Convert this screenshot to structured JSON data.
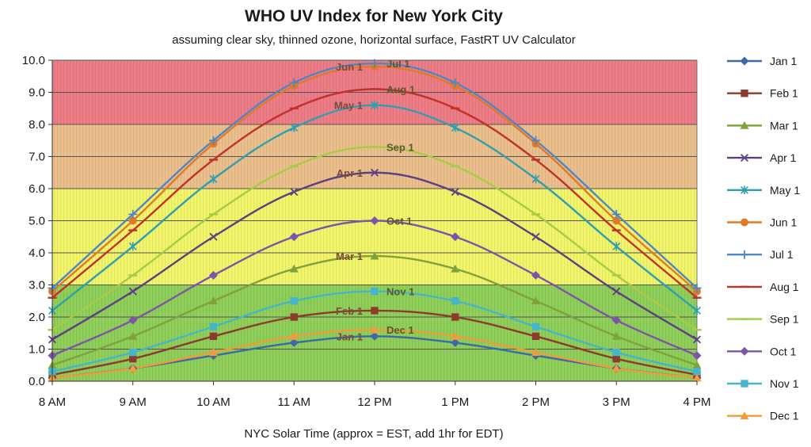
{
  "chart_data": {
    "type": "line",
    "title": "WHO UV Index for New York City",
    "subtitle": "assuming clear sky, thinned ozone, horizontal surface, FastRT UV Calculator",
    "xlabel": "NYC Solar Time (approx = EST, add 1hr for EDT)",
    "ylabel": "",
    "ylim": [
      0,
      10
    ],
    "yticks": [
      "0.0",
      "1.0",
      "2.0",
      "3.0",
      "4.0",
      "5.0",
      "6.0",
      "7.0",
      "8.0",
      "9.0",
      "10.0"
    ],
    "categories": [
      "8 AM",
      "9 AM",
      "10 AM",
      "11 AM",
      "12 PM",
      "1 PM",
      "2 PM",
      "3 PM",
      "4 PM"
    ],
    "grid": true,
    "legend_position": "right",
    "bands": [
      {
        "from": 0,
        "to": 3,
        "color": "#8fcf5a"
      },
      {
        "from": 3,
        "to": 6,
        "color": "#f3f56a"
      },
      {
        "from": 6,
        "to": 8,
        "color": "#ecc08c"
      },
      {
        "from": 8,
        "to": 10,
        "color": "#ee7d87"
      }
    ],
    "series": [
      {
        "name": "Jan 1",
        "color": "#3c69a8",
        "marker": "diamond",
        "values": [
          0.1,
          0.4,
          0.8,
          1.2,
          1.4,
          1.2,
          0.8,
          0.4,
          0.1
        ]
      },
      {
        "name": "Feb 1",
        "color": "#8c3b2c",
        "marker": "square",
        "values": [
          0.2,
          0.7,
          1.4,
          2.0,
          2.2,
          2.0,
          1.4,
          0.7,
          0.2
        ]
      },
      {
        "name": "Mar 1",
        "color": "#7fa23a",
        "marker": "triangle",
        "values": [
          0.5,
          1.4,
          2.5,
          3.5,
          3.9,
          3.5,
          2.5,
          1.4,
          0.5
        ]
      },
      {
        "name": "Apr 1",
        "color": "#5e3f82",
        "marker": "x",
        "values": [
          1.3,
          2.8,
          4.5,
          5.9,
          6.5,
          5.9,
          4.5,
          2.8,
          1.3
        ]
      },
      {
        "name": "May 1",
        "color": "#2f9fb0",
        "marker": "star",
        "values": [
          2.2,
          4.2,
          6.3,
          7.9,
          8.6,
          7.9,
          6.3,
          4.2,
          2.2
        ]
      },
      {
        "name": "Jun 1",
        "color": "#e07a2a",
        "marker": "circle",
        "values": [
          2.8,
          5.0,
          7.4,
          9.2,
          9.8,
          9.2,
          7.4,
          5.0,
          2.8
        ]
      },
      {
        "name": "Jul 1",
        "color": "#4f86c6",
        "marker": "plus",
        "values": [
          2.9,
          5.2,
          7.5,
          9.3,
          9.9,
          9.3,
          7.5,
          5.2,
          2.9
        ]
      },
      {
        "name": "Aug 1",
        "color": "#c0302c",
        "marker": "dash",
        "values": [
          2.6,
          4.7,
          6.9,
          8.5,
          9.1,
          8.5,
          6.9,
          4.7,
          2.6
        ]
      },
      {
        "name": "Sep 1",
        "color": "#a6cc47",
        "marker": "dash",
        "values": [
          1.6,
          3.3,
          5.2,
          6.7,
          7.3,
          6.7,
          5.2,
          3.3,
          1.6
        ]
      },
      {
        "name": "Oct 1",
        "color": "#7d55a8",
        "marker": "diamond",
        "values": [
          0.8,
          1.9,
          3.3,
          4.5,
          5.0,
          4.5,
          3.3,
          1.9,
          0.8
        ]
      },
      {
        "name": "Nov 1",
        "color": "#45b5cc",
        "marker": "square",
        "values": [
          0.3,
          0.9,
          1.7,
          2.5,
          2.8,
          2.5,
          1.7,
          0.9,
          0.3
        ]
      },
      {
        "name": "Dec 1",
        "color": "#f39a3a",
        "marker": "triangle",
        "values": [
          0.1,
          0.4,
          0.9,
          1.4,
          1.6,
          1.4,
          0.9,
          0.4,
          0.1
        ]
      }
    ],
    "annotations": [
      {
        "text": "Jun 1",
        "series": "Jun 1",
        "at": "12 PM",
        "side": "left"
      },
      {
        "text": "Jul 1",
        "series": "Jul 1",
        "at": "12 PM",
        "side": "right"
      },
      {
        "text": "Aug 1",
        "series": "Aug 1",
        "at": "12 PM",
        "side": "right"
      },
      {
        "text": "May 1",
        "series": "May 1",
        "at": "12 PM",
        "side": "left"
      },
      {
        "text": "Sep 1",
        "series": "Sep 1",
        "at": "12 PM",
        "side": "right"
      },
      {
        "text": "Apr 1",
        "series": "Apr 1",
        "at": "12 PM",
        "side": "left"
      },
      {
        "text": "Oct 1",
        "series": "Oct 1",
        "at": "12 PM",
        "side": "right"
      },
      {
        "text": "Mar 1",
        "series": "Mar 1",
        "at": "12 PM",
        "side": "left"
      },
      {
        "text": "Nov 1",
        "series": "Nov 1",
        "at": "12 PM",
        "side": "right"
      },
      {
        "text": "Feb 1",
        "series": "Feb 1",
        "at": "12 PM",
        "side": "left"
      },
      {
        "text": "Dec 1",
        "series": "Dec 1",
        "at": "12 PM",
        "side": "right"
      },
      {
        "text": "Jan 1",
        "series": "Jan 1",
        "at": "12 PM",
        "side": "left"
      }
    ]
  }
}
